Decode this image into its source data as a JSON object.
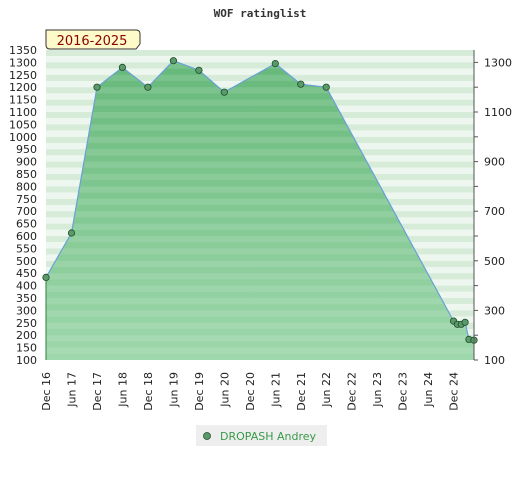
{
  "chart_data": {
    "type": "area",
    "title": "WOF ratinglist",
    "period_label": "2016-2025",
    "ylim": [
      100,
      1350
    ],
    "y_ticks_left": [
      100,
      150,
      200,
      250,
      300,
      350,
      400,
      450,
      500,
      550,
      600,
      650,
      700,
      750,
      800,
      850,
      900,
      950,
      1000,
      1050,
      1100,
      1150,
      1200,
      1250,
      1300,
      1350
    ],
    "y_ticks_right": [
      100,
      300,
      500,
      700,
      900,
      1100,
      1300
    ],
    "x_ticks": [
      "Dec 16",
      "Jun 17",
      "Dec 17",
      "Jun 18",
      "Dec 18",
      "Jun 19",
      "Dec 19",
      "Jun 20",
      "Dec 20",
      "Jun 21",
      "Dec 21",
      "Jun 22",
      "Dec 22",
      "Jun 23",
      "Dec 23",
      "Jun 24",
      "Dec 24"
    ],
    "grid": true,
    "legend_position": "bottom",
    "colors": {
      "area": "#7cc48c",
      "line": "#6aa0d8",
      "marker": "#5a9a6a",
      "legend_text": "#3a9a4a"
    },
    "series": [
      {
        "name": "DROPASH Andrey",
        "points": [
          {
            "x": 0,
            "y": 433
          },
          {
            "x": 1,
            "y": 612
          },
          {
            "x": 2,
            "y": 1200
          },
          {
            "x": 3,
            "y": 1280
          },
          {
            "x": 4,
            "y": 1200
          },
          {
            "x": 5,
            "y": 1307
          },
          {
            "x": 6,
            "y": 1268
          },
          {
            "x": 7,
            "y": 1180
          },
          {
            "x": 9,
            "y": 1295
          },
          {
            "x": 10,
            "y": 1212
          },
          {
            "x": 11,
            "y": 1200
          },
          {
            "x": 16,
            "y": 257
          },
          {
            "x": 16.15,
            "y": 244
          },
          {
            "x": 16.3,
            "y": 244
          },
          {
            "x": 16.45,
            "y": 252
          },
          {
            "x": 16.6,
            "y": 183
          },
          {
            "x": 16.8,
            "y": 180
          }
        ]
      }
    ]
  }
}
